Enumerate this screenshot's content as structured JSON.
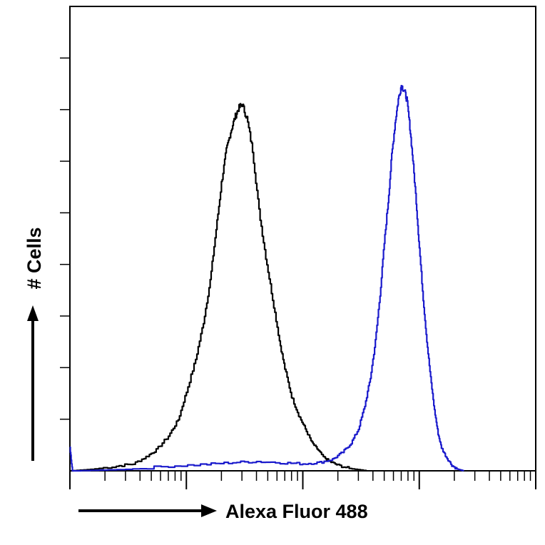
{
  "chart_data": {
    "type": "area",
    "xlabel": "Alexa Fluor 488",
    "ylabel": "# Cells",
    "x_scale": "log",
    "xlim": [
      1,
      10000
    ],
    "ylim": [
      0,
      1
    ],
    "grid": false,
    "legend": "none",
    "series": [
      {
        "color": "#000000",
        "points": [
          [
            1.0,
            0.0
          ],
          [
            1.5,
            0.003
          ],
          [
            2.5,
            0.01
          ],
          [
            3.5,
            0.015
          ],
          [
            4.5,
            0.03
          ],
          [
            5.5,
            0.045
          ],
          [
            7.0,
            0.075
          ],
          [
            8.5,
            0.11
          ],
          [
            10,
            0.17
          ],
          [
            12,
            0.24
          ],
          [
            14,
            0.32
          ],
          [
            16,
            0.41
          ],
          [
            18,
            0.52
          ],
          [
            20,
            0.62
          ],
          [
            22,
            0.69
          ],
          [
            24,
            0.73
          ],
          [
            26,
            0.76
          ],
          [
            28,
            0.78
          ],
          [
            30,
            0.79
          ],
          [
            33,
            0.76
          ],
          [
            37,
            0.69
          ],
          [
            42,
            0.56
          ],
          [
            48,
            0.46
          ],
          [
            55,
            0.37
          ],
          [
            63,
            0.28
          ],
          [
            70,
            0.22
          ],
          [
            80,
            0.16
          ],
          [
            92,
            0.12
          ],
          [
            105,
            0.09
          ],
          [
            120,
            0.06
          ],
          [
            135,
            0.045
          ],
          [
            150,
            0.03
          ],
          [
            170,
            0.02
          ],
          [
            200,
            0.012
          ],
          [
            250,
            0.005
          ],
          [
            350,
            0.0
          ]
        ]
      },
      {
        "color": "#1a1acc",
        "points": [
          [
            1.0,
            0.05
          ],
          [
            1.05,
            0.0
          ],
          [
            3.0,
            0.003
          ],
          [
            7.0,
            0.01
          ],
          [
            15,
            0.014
          ],
          [
            25,
            0.018
          ],
          [
            40,
            0.02
          ],
          [
            70,
            0.017
          ],
          [
            100,
            0.015
          ],
          [
            140,
            0.018
          ],
          [
            180,
            0.025
          ],
          [
            220,
            0.04
          ],
          [
            260,
            0.06
          ],
          [
            300,
            0.09
          ],
          [
            340,
            0.14
          ],
          [
            380,
            0.2
          ],
          [
            420,
            0.28
          ],
          [
            460,
            0.38
          ],
          [
            500,
            0.49
          ],
          [
            540,
            0.58
          ],
          [
            580,
            0.68
          ],
          [
            620,
            0.75
          ],
          [
            660,
            0.8
          ],
          [
            700,
            0.83
          ],
          [
            740,
            0.82
          ],
          [
            780,
            0.8
          ],
          [
            830,
            0.74
          ],
          [
            880,
            0.67
          ],
          [
            940,
            0.58
          ],
          [
            1000,
            0.48
          ],
          [
            1080,
            0.37
          ],
          [
            1160,
            0.28
          ],
          [
            1250,
            0.2
          ],
          [
            1350,
            0.13
          ],
          [
            1450,
            0.08
          ],
          [
            1550,
            0.05
          ],
          [
            1700,
            0.03
          ],
          [
            1900,
            0.012
          ],
          [
            2100,
            0.004
          ],
          [
            2400,
            0.0
          ]
        ]
      }
    ]
  }
}
